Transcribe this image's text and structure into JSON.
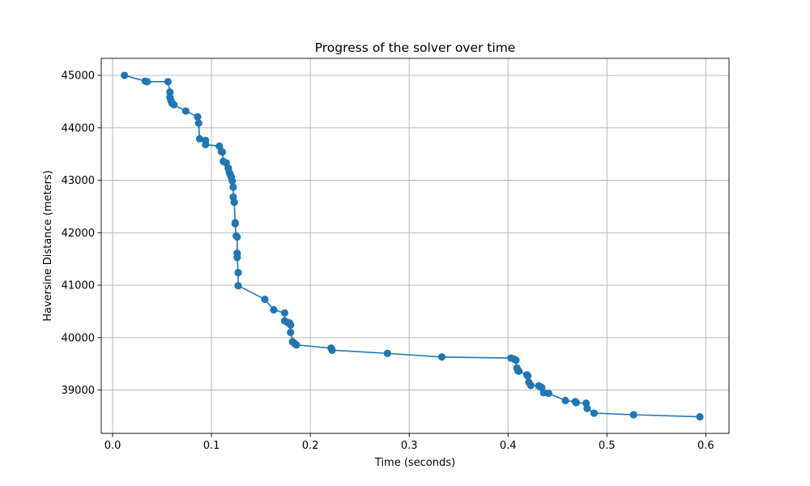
{
  "chart_data": {
    "type": "line",
    "title": "Progress of the solver over time",
    "xlabel": "Time (seconds)",
    "ylabel": "Haversine Distance (meters)",
    "xlim": [
      -0.0115,
      0.6235
    ],
    "ylim": [
      38175,
      45325
    ],
    "x_ticks": [
      0.0,
      0.1,
      0.2,
      0.3,
      0.4,
      0.5,
      0.6
    ],
    "x_tick_labels": [
      "0.0",
      "0.1",
      "0.2",
      "0.3",
      "0.4",
      "0.5",
      "0.6"
    ],
    "y_ticks": [
      39000,
      40000,
      41000,
      42000,
      43000,
      44000,
      45000
    ],
    "y_tick_labels": [
      "39000",
      "40000",
      "41000",
      "42000",
      "43000",
      "44000",
      "45000"
    ],
    "grid": true,
    "marker": "circle",
    "series_color": "#1f77b4",
    "series": [
      {
        "points": [
          [
            0.012,
            45000
          ],
          [
            0.033,
            44890
          ],
          [
            0.035,
            44880
          ],
          [
            0.056,
            44880
          ],
          [
            0.058,
            44680
          ],
          [
            0.058,
            44580
          ],
          [
            0.059,
            44520
          ],
          [
            0.06,
            44470
          ],
          [
            0.062,
            44440
          ],
          [
            0.074,
            44320
          ],
          [
            0.086,
            44210
          ],
          [
            0.087,
            44090
          ],
          [
            0.088,
            43790
          ],
          [
            0.094,
            43760
          ],
          [
            0.094,
            43680
          ],
          [
            0.108,
            43650
          ],
          [
            0.11,
            43550
          ],
          [
            0.111,
            43540
          ],
          [
            0.112,
            43360
          ],
          [
            0.115,
            43330
          ],
          [
            0.117,
            43230
          ],
          [
            0.118,
            43150
          ],
          [
            0.119,
            43110
          ],
          [
            0.12,
            43060
          ],
          [
            0.121,
            42990
          ],
          [
            0.122,
            42870
          ],
          [
            0.122,
            42680
          ],
          [
            0.123,
            42580
          ],
          [
            0.124,
            42190
          ],
          [
            0.124,
            42170
          ],
          [
            0.125,
            41940
          ],
          [
            0.126,
            41920
          ],
          [
            0.126,
            41610
          ],
          [
            0.126,
            41530
          ],
          [
            0.127,
            41240
          ],
          [
            0.127,
            40990
          ],
          [
            0.154,
            40730
          ],
          [
            0.163,
            40530
          ],
          [
            0.174,
            40470
          ],
          [
            0.174,
            40320
          ],
          [
            0.177,
            40290
          ],
          [
            0.179,
            40280
          ],
          [
            0.18,
            40240
          ],
          [
            0.18,
            40100
          ],
          [
            0.182,
            39920
          ],
          [
            0.184,
            39890
          ],
          [
            0.186,
            39860
          ],
          [
            0.221,
            39800
          ],
          [
            0.222,
            39760
          ],
          [
            0.278,
            39700
          ],
          [
            0.333,
            39630
          ],
          [
            0.403,
            39610
          ],
          [
            0.406,
            39590
          ],
          [
            0.408,
            39570
          ],
          [
            0.409,
            39420
          ],
          [
            0.41,
            39370
          ],
          [
            0.411,
            39360
          ],
          [
            0.419,
            39290
          ],
          [
            0.42,
            39270
          ],
          [
            0.421,
            39150
          ],
          [
            0.423,
            39090
          ],
          [
            0.431,
            39080
          ],
          [
            0.433,
            39060
          ],
          [
            0.434,
            39050
          ],
          [
            0.436,
            38950
          ],
          [
            0.441,
            38940
          ],
          [
            0.458,
            38800
          ],
          [
            0.468,
            38780
          ],
          [
            0.469,
            38760
          ],
          [
            0.479,
            38750
          ],
          [
            0.48,
            38650
          ],
          [
            0.487,
            38560
          ],
          [
            0.527,
            38530
          ],
          [
            0.594,
            38490
          ]
        ]
      }
    ]
  }
}
